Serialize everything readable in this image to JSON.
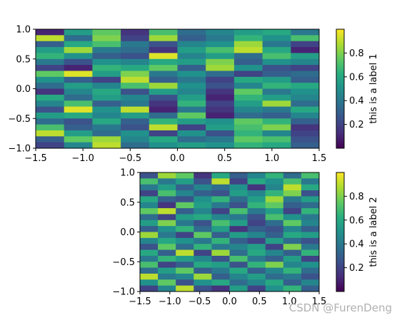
{
  "watermark": "CSDN @FurenDeng",
  "chart_data": [
    {
      "type": "heatmap",
      "colormap": "viridis",
      "x_edges": [
        -1.5,
        -1.0,
        -0.5,
        0.0,
        0.5,
        1.0,
        1.5
      ],
      "y_range": [
        -1.0,
        1.0
      ],
      "xlim": [
        -1.5,
        1.5
      ],
      "ylim": [
        -1.0,
        1.0
      ],
      "xticks": [
        "−1.5",
        "−1.0",
        "−0.5",
        "0.0",
        "0.5",
        "1.0",
        "1.5"
      ],
      "yticks": [
        "1.0",
        "0.5",
        "0.0",
        "−0.5",
        "−1.0"
      ],
      "cols": 10,
      "rows": 20,
      "values": [
        [
          0.1,
          0.55,
          0.75,
          0.15,
          0.7,
          0.35,
          0.45,
          0.55,
          0.6,
          0.4
        ],
        [
          0.9,
          0.35,
          0.8,
          0.2,
          0.85,
          0.3,
          0.4,
          0.65,
          0.5,
          0.7
        ],
        [
          0.3,
          0.6,
          0.7,
          0.4,
          0.25,
          0.45,
          0.5,
          0.85,
          0.4,
          0.2
        ],
        [
          0.55,
          0.85,
          0.4,
          0.35,
          0.15,
          0.55,
          0.7,
          0.9,
          0.6,
          0.1
        ],
        [
          0.65,
          0.5,
          0.3,
          0.25,
          0.95,
          0.45,
          0.55,
          0.35,
          0.7,
          0.55
        ],
        [
          0.4,
          0.25,
          0.5,
          0.45,
          0.6,
          0.55,
          0.8,
          0.3,
          0.5,
          0.45
        ],
        [
          0.2,
          0.1,
          0.65,
          0.6,
          0.75,
          0.3,
          0.85,
          0.5,
          0.25,
          0.2
        ],
        [
          0.75,
          0.95,
          0.55,
          0.8,
          0.4,
          0.5,
          0.35,
          0.2,
          0.3,
          0.35
        ],
        [
          0.5,
          0.3,
          0.2,
          0.9,
          0.3,
          0.4,
          0.2,
          0.6,
          0.55,
          0.3
        ],
        [
          0.35,
          0.55,
          0.45,
          0.7,
          0.85,
          0.5,
          0.25,
          0.45,
          0.65,
          0.6
        ],
        [
          0.15,
          0.45,
          0.6,
          0.25,
          0.55,
          0.45,
          0.15,
          0.75,
          0.4,
          0.5
        ],
        [
          0.6,
          0.35,
          0.55,
          0.45,
          0.25,
          0.55,
          0.1,
          0.65,
          0.55,
          0.45
        ],
        [
          0.45,
          0.7,
          0.3,
          0.4,
          0.15,
          0.65,
          0.2,
          0.55,
          0.85,
          0.35
        ],
        [
          0.25,
          0.95,
          0.5,
          0.9,
          0.1,
          0.4,
          0.15,
          0.45,
          0.4,
          0.6
        ],
        [
          0.55,
          0.6,
          0.45,
          0.55,
          0.35,
          0.75,
          0.1,
          0.35,
          0.3,
          0.45
        ],
        [
          0.35,
          0.25,
          0.6,
          0.3,
          0.65,
          0.55,
          0.5,
          0.75,
          0.65,
          0.3
        ],
        [
          0.7,
          0.3,
          0.4,
          0.25,
          0.9,
          0.2,
          0.55,
          0.7,
          0.8,
          0.15
        ],
        [
          0.9,
          0.55,
          0.35,
          0.5,
          0.2,
          0.5,
          0.25,
          0.65,
          0.45,
          0.2
        ],
        [
          0.3,
          0.75,
          0.85,
          0.45,
          0.6,
          0.35,
          0.4,
          0.75,
          0.7,
          0.25
        ],
        [
          0.2,
          0.45,
          0.9,
          0.35,
          0.5,
          0.55,
          0.5,
          0.65,
          0.6,
          0.3
        ]
      ],
      "colorbar": {
        "label": "this is a label 1",
        "range": [
          0.0,
          1.0
        ],
        "ticks": [
          "0.2",
          "0.4",
          "0.6",
          "0.8"
        ]
      }
    },
    {
      "type": "heatmap",
      "colormap": "viridis",
      "x_edges": [
        -1.5,
        -1.0,
        -0.5,
        0.0,
        0.5,
        1.0,
        1.5
      ],
      "y_range": [
        -1.0,
        1.0
      ],
      "xlim": [
        -1.5,
        1.5
      ],
      "ylim": [
        -1.0,
        1.0
      ],
      "xticks": [
        "−1.5",
        "−1.0",
        "−0.5",
        "0.0",
        "0.5",
        "1.0",
        "1.5"
      ],
      "yticks": [
        "1.0",
        "0.5",
        "0.0",
        "−0.5",
        "−1.0"
      ],
      "cols": 10,
      "rows": 20,
      "values": [
        [
          0.25,
          0.85,
          0.75,
          0.15,
          0.6,
          0.3,
          0.45,
          0.65,
          0.35,
          0.7
        ],
        [
          0.7,
          0.4,
          0.55,
          0.25,
          0.9,
          0.2,
          0.6,
          0.5,
          0.7,
          0.4
        ],
        [
          0.4,
          0.55,
          0.3,
          0.45,
          0.35,
          0.5,
          0.15,
          0.45,
          0.9,
          0.6
        ],
        [
          0.2,
          0.7,
          0.45,
          0.3,
          0.25,
          0.55,
          0.45,
          0.65,
          0.8,
          0.25
        ],
        [
          0.6,
          0.3,
          0.25,
          0.5,
          0.65,
          0.35,
          0.55,
          0.85,
          0.4,
          0.55
        ],
        [
          0.45,
          0.15,
          0.75,
          0.55,
          0.4,
          0.25,
          0.65,
          0.75,
          0.3,
          0.35
        ],
        [
          0.75,
          0.9,
          0.3,
          0.45,
          0.2,
          0.7,
          0.4,
          0.55,
          0.2,
          0.65
        ],
        [
          0.35,
          0.2,
          0.55,
          0.6,
          0.45,
          0.4,
          0.25,
          0.7,
          0.5,
          0.4
        ],
        [
          0.55,
          0.8,
          0.4,
          0.25,
          0.7,
          0.55,
          0.2,
          0.35,
          0.75,
          0.45
        ],
        [
          0.3,
          0.5,
          0.65,
          0.35,
          0.55,
          0.15,
          0.3,
          0.25,
          0.45,
          0.3
        ],
        [
          0.85,
          0.4,
          0.2,
          0.75,
          0.3,
          0.55,
          0.45,
          0.3,
          0.6,
          0.55
        ],
        [
          0.45,
          0.6,
          0.5,
          0.4,
          0.65,
          0.3,
          0.2,
          0.55,
          0.35,
          0.25
        ],
        [
          0.25,
          0.75,
          0.35,
          0.65,
          0.4,
          0.45,
          0.55,
          0.2,
          0.8,
          0.4
        ],
        [
          0.6,
          0.3,
          0.9,
          0.2,
          0.85,
          0.35,
          0.6,
          0.45,
          0.3,
          0.65
        ],
        [
          0.4,
          0.65,
          0.55,
          0.45,
          0.25,
          0.7,
          0.4,
          0.3,
          0.55,
          0.2
        ],
        [
          0.7,
          0.2,
          0.3,
          0.6,
          0.55,
          0.25,
          0.65,
          0.8,
          0.45,
          0.5
        ],
        [
          0.35,
          0.55,
          0.75,
          0.3,
          0.4,
          0.6,
          0.3,
          0.45,
          0.65,
          0.35
        ],
        [
          0.9,
          0.4,
          0.45,
          0.85,
          0.3,
          0.45,
          0.55,
          0.35,
          0.4,
          0.25
        ],
        [
          0.5,
          0.75,
          0.25,
          0.5,
          0.6,
          0.35,
          0.45,
          0.6,
          0.3,
          0.45
        ],
        [
          0.2,
          0.45,
          0.9,
          0.25,
          0.15,
          0.55,
          0.2,
          0.5,
          0.65,
          0.3
        ]
      ],
      "colorbar": {
        "label": "this is a label 2",
        "range": [
          0.0,
          1.0
        ],
        "ticks": [
          "0.2",
          "0.4",
          "0.6",
          "0.8"
        ]
      }
    }
  ]
}
